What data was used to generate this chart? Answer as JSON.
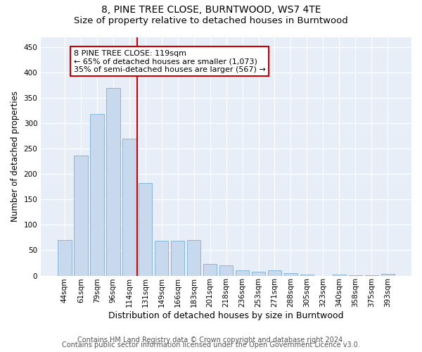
{
  "title1": "8, PINE TREE CLOSE, BURNTWOOD, WS7 4TE",
  "title2": "Size of property relative to detached houses in Burntwood",
  "xlabel": "Distribution of detached houses by size in Burntwood",
  "ylabel": "Number of detached properties",
  "categories": [
    "44sqm",
    "61sqm",
    "79sqm",
    "96sqm",
    "114sqm",
    "131sqm",
    "149sqm",
    "166sqm",
    "183sqm",
    "201sqm",
    "218sqm",
    "236sqm",
    "253sqm",
    "271sqm",
    "288sqm",
    "305sqm",
    "323sqm",
    "340sqm",
    "358sqm",
    "375sqm",
    "393sqm"
  ],
  "values": [
    70,
    237,
    318,
    370,
    270,
    183,
    68,
    68,
    70,
    23,
    20,
    10,
    8,
    10,
    5,
    2,
    0,
    2,
    1,
    1,
    3
  ],
  "bar_color": "#c8d9ee",
  "bar_edge_color": "#7bafd4",
  "vline_x": 4.5,
  "vline_color": "#cc0000",
  "annotation_text": "8 PINE TREE CLOSE: 119sqm\n← 65% of detached houses are smaller (1,073)\n35% of semi-detached houses are larger (567) →",
  "annotation_box_color": "#ffffff",
  "annotation_box_edge": "#cc0000",
  "ylim": [
    0,
    470
  ],
  "yticks": [
    0,
    50,
    100,
    150,
    200,
    250,
    300,
    350,
    400,
    450
  ],
  "footnote1": "Contains HM Land Registry data © Crown copyright and database right 2024.",
  "footnote2": "Contains public sector information licensed under the Open Government Licence v3.0.",
  "background_color": "#e8eef8",
  "grid_color": "#ffffff",
  "fig_background": "#ffffff",
  "title1_fontsize": 10,
  "title2_fontsize": 9.5,
  "xlabel_fontsize": 9,
  "ylabel_fontsize": 8.5,
  "tick_fontsize": 7.5,
  "annot_fontsize": 8,
  "footnote_fontsize": 7
}
